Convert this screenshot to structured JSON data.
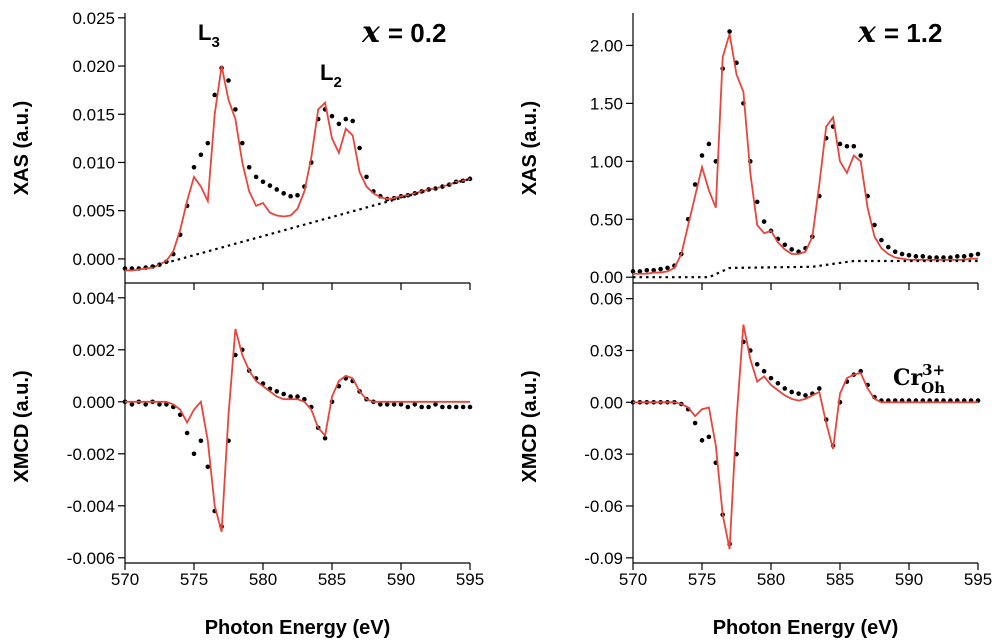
{
  "chart_data": [
    {
      "type": "line",
      "ylabel": "XAS (a.u.)",
      "xlim": [
        570,
        595
      ],
      "xticks": [
        570,
        575,
        580,
        585,
        590,
        595
      ],
      "ylim": [
        -0.0025,
        0.0255
      ],
      "yticks": [
        {
          "value": 0,
          "label": "0.000"
        },
        {
          "value": 0.005,
          "label": "0.005"
        },
        {
          "value": 0.01,
          "label": "0.010"
        },
        {
          "value": 0.015,
          "label": "0.015"
        },
        {
          "value": 0.02,
          "label": "0.020"
        },
        {
          "value": 0.025,
          "label": "0.025"
        }
      ],
      "annotations": [
        {
          "text": "L",
          "sub": "3"
        },
        {
          "text": "L",
          "sub": "2"
        },
        {
          "var": "x",
          "text": "= 0.2"
        }
      ],
      "x": [
        570,
        570.5,
        571,
        571.5,
        572,
        572.5,
        573,
        573.5,
        574,
        574.5,
        575,
        575.5,
        576,
        576.5,
        577,
        577.5,
        578,
        578.5,
        579,
        579.5,
        580,
        580.5,
        581,
        581.5,
        582,
        582.5,
        583,
        583.5,
        584,
        584.5,
        585,
        585.5,
        586,
        586.5,
        587,
        587.5,
        588,
        588.5,
        589,
        589.5,
        590,
        590.5,
        591,
        591.5,
        592,
        592.5,
        593,
        593.5,
        594,
        594.5,
        595
      ],
      "series": [
        {
          "style": "dots",
          "color": "#000000",
          "values": [
            -0.001,
            -0.001,
            -0.001,
            -0.0009,
            -0.0008,
            -0.0006,
            -0.0003,
            0.0005,
            0.0025,
            0.0055,
            0.0095,
            0.0108,
            0.012,
            0.017,
            0.0198,
            0.0185,
            0.0155,
            0.012,
            0.0095,
            0.0085,
            0.008,
            0.0076,
            0.0072,
            0.0068,
            0.0065,
            0.0066,
            0.0075,
            0.01,
            0.0145,
            0.0155,
            0.0148,
            0.014,
            0.0145,
            0.0143,
            0.0115,
            0.0085,
            0.007,
            0.0065,
            0.0062,
            0.0063,
            0.0065,
            0.0066,
            0.0068,
            0.007,
            0.0072,
            0.0073,
            0.0075,
            0.0077,
            0.008,
            0.0081,
            0.0083
          ]
        },
        {
          "style": "line",
          "color": "#e8453c",
          "values": [
            -0.0012,
            -0.0012,
            -0.0011,
            -0.001,
            -0.0009,
            -0.0006,
            -0.0002,
            0.0008,
            0.003,
            0.006,
            0.0085,
            0.0075,
            0.006,
            0.015,
            0.02,
            0.0165,
            0.0145,
            0.01,
            0.007,
            0.0055,
            0.0058,
            0.0048,
            0.0045,
            0.0044,
            0.0045,
            0.0052,
            0.007,
            0.0105,
            0.0155,
            0.0162,
            0.0125,
            0.011,
            0.0135,
            0.0128,
            0.009,
            0.0075,
            0.0068,
            0.0064,
            0.0062,
            0.0063,
            0.0065,
            0.0066,
            0.0068,
            0.007,
            0.0072,
            0.0073,
            0.0075,
            0.0077,
            0.008,
            0.0081,
            0.0083
          ]
        },
        {
          "style": "dotted",
          "color": "#000000",
          "x": [
            572,
            595
          ],
          "values": [
            -0.0008,
            0.0083
          ]
        }
      ]
    },
    {
      "type": "line",
      "ylabel": "XMCD (a.u.)",
      "xlabel": "Photon Energy (eV)",
      "xlim": [
        570,
        595
      ],
      "xticks": [
        570,
        575,
        580,
        585,
        590,
        595
      ],
      "ylim": [
        -0.0062,
        0.0043
      ],
      "yticks": [
        -0.006,
        -0.004,
        -0.002,
        {
          "value": 0,
          "label": "0.000"
        },
        0.002,
        0.004
      ],
      "x": [
        570,
        570.5,
        571,
        571.5,
        572,
        572.5,
        573,
        573.5,
        574,
        574.5,
        575,
        575.5,
        576,
        576.5,
        577,
        577.5,
        578,
        578.5,
        579,
        579.5,
        580,
        580.5,
        581,
        581.5,
        582,
        582.5,
        583,
        583.5,
        584,
        584.5,
        585,
        585.5,
        586,
        586.5,
        587,
        587.5,
        588,
        588.5,
        589,
        589.5,
        590,
        590.5,
        591,
        591.5,
        592,
        592.5,
        593,
        593.5,
        594,
        594.5,
        595
      ],
      "series": [
        {
          "style": "dots",
          "color": "#000000",
          "values": [
            0,
            -0.0001,
            0,
            -0.0001,
            0,
            -0.0001,
            -0.0001,
            -0.0002,
            -0.0005,
            -0.0012,
            -0.002,
            -0.0015,
            -0.0025,
            -0.0042,
            -0.0048,
            -0.0015,
            0.0018,
            0.002,
            0.0012,
            0.0009,
            0.0007,
            0.0005,
            0.0004,
            0.0003,
            0.0002,
            0.0002,
            0.0001,
            -0.0002,
            -0.001,
            -0.0014,
            0,
            0.0006,
            0.0009,
            0.0008,
            0.0004,
            0.0001,
            0,
            -0.0001,
            -0.0001,
            -0.0001,
            -0.0001,
            -0.0002,
            -0.0001,
            -0.0002,
            -0.0002,
            -0.0001,
            -0.0002,
            -0.0002,
            -0.0002,
            -0.0002,
            -0.0002
          ]
        },
        {
          "style": "line",
          "color": "#e8453c",
          "values": [
            0,
            0,
            0,
            0,
            0,
            0,
            0,
            -0.0001,
            -0.0003,
            -0.0008,
            -0.0003,
            0,
            -0.0015,
            -0.004,
            -0.005,
            -0.0005,
            0.0028,
            0.0018,
            0.0012,
            0.0008,
            0.0006,
            0.0004,
            0.0002,
            0.0001,
            0.0001,
            0.0001,
            0,
            -0.0003,
            -0.001,
            -0.0013,
            0.0002,
            0.0008,
            0.001,
            0.0009,
            0.0004,
            0.0001,
            0,
            0,
            0,
            0,
            0,
            0,
            0,
            0,
            0,
            0,
            0,
            0,
            0,
            0,
            0
          ]
        }
      ]
    },
    {
      "type": "line",
      "ylabel": "XAS (a.u.)",
      "xlim": [
        570,
        595
      ],
      "xticks": [
        570,
        575,
        580,
        585,
        590,
        595
      ],
      "ylim": [
        -0.05,
        2.28
      ],
      "yticks": [
        {
          "value": 0,
          "label": "0.00"
        },
        {
          "value": 0.5,
          "label": "0.50"
        },
        {
          "value": 1,
          "label": "1.00"
        },
        {
          "value": 1.5,
          "label": "1.50"
        },
        {
          "value": 2,
          "label": "2.00"
        }
      ],
      "annotations": [
        {
          "var": "x",
          "text": "= 1.2"
        }
      ],
      "x": [
        570,
        570.5,
        571,
        571.5,
        572,
        572.5,
        573,
        573.5,
        574,
        574.5,
        575,
        575.5,
        576,
        576.5,
        577,
        577.5,
        578,
        578.5,
        579,
        579.5,
        580,
        580.5,
        581,
        581.5,
        582,
        582.5,
        583,
        583.5,
        584,
        584.5,
        585,
        585.5,
        586,
        586.5,
        587,
        587.5,
        588,
        588.5,
        589,
        589.5,
        590,
        590.5,
        591,
        591.5,
        592,
        592.5,
        593,
        593.5,
        594,
        594.5,
        595
      ],
      "series": [
        {
          "style": "dots",
          "color": "#000000",
          "values": [
            0.05,
            0.05,
            0.06,
            0.06,
            0.07,
            0.08,
            0.1,
            0.2,
            0.5,
            0.8,
            1.05,
            1.15,
            1,
            1.8,
            2.12,
            1.85,
            1.5,
            1,
            0.65,
            0.48,
            0.4,
            0.33,
            0.28,
            0.24,
            0.22,
            0.25,
            0.35,
            0.7,
            1.2,
            1.3,
            1.15,
            1.13,
            1.13,
            1.05,
            0.7,
            0.45,
            0.32,
            0.26,
            0.22,
            0.2,
            0.19,
            0.18,
            0.18,
            0.17,
            0.17,
            0.17,
            0.17,
            0.18,
            0.18,
            0.19,
            0.2
          ]
        },
        {
          "style": "line",
          "color": "#e8453c",
          "values": [
            0.03,
            0.03,
            0.03,
            0.04,
            0.04,
            0.05,
            0.08,
            0.2,
            0.45,
            0.7,
            0.95,
            0.75,
            0.6,
            1.9,
            2.1,
            1.75,
            1.6,
            0.9,
            0.45,
            0.38,
            0.4,
            0.3,
            0.24,
            0.2,
            0.2,
            0.22,
            0.35,
            0.8,
            1.3,
            1.38,
            1,
            0.9,
            1.05,
            1,
            0.6,
            0.35,
            0.25,
            0.2,
            0.17,
            0.16,
            0.15,
            0.15,
            0.15,
            0.15,
            0.15,
            0.15,
            0.15,
            0.15,
            0.15,
            0.16,
            0.16
          ]
        },
        {
          "style": "dotted",
          "color": "#000000",
          "x": [
            570,
            575.5,
            577,
            583,
            586,
            595
          ],
          "values": [
            0,
            0,
            0.08,
            0.09,
            0.14,
            0.14
          ]
        }
      ]
    },
    {
      "type": "line",
      "ylabel": "XMCD (a.u.)",
      "xlabel": "Photon Energy (eV)",
      "xlim": [
        570,
        595
      ],
      "xticks": [
        570,
        575,
        580,
        585,
        590,
        595
      ],
      "ylim": [
        -0.093,
        0.065
      ],
      "yticks": [
        -0.09,
        -0.06,
        -0.03,
        {
          "value": 0,
          "label": "0.00"
        },
        0.03,
        0.06
      ],
      "annotations": [
        {
          "text": "Cr",
          "sup": "3+",
          "sub": "Oh",
          "color": "#e8453c"
        }
      ],
      "x": [
        570,
        570.5,
        571,
        571.5,
        572,
        572.5,
        573,
        573.5,
        574,
        574.5,
        575,
        575.5,
        576,
        576.5,
        577,
        577.5,
        578,
        578.5,
        579,
        579.5,
        580,
        580.5,
        581,
        581.5,
        582,
        582.5,
        583,
        583.5,
        584,
        584.5,
        585,
        585.5,
        586,
        586.5,
        587,
        587.5,
        588,
        588.5,
        589,
        589.5,
        590,
        590.5,
        591,
        591.5,
        592,
        592.5,
        593,
        593.5,
        594,
        594.5,
        595
      ],
      "series": [
        {
          "style": "dots",
          "color": "#000000",
          "values": [
            0,
            0,
            0,
            0,
            0,
            0,
            0,
            -0.001,
            -0.004,
            -0.012,
            -0.022,
            -0.02,
            -0.035,
            -0.065,
            -0.082,
            -0.03,
            0.035,
            0.03,
            0.022,
            0.018,
            0.014,
            0.011,
            0.008,
            0.006,
            0.005,
            0.004,
            0.005,
            0.008,
            -0.01,
            -0.025,
            0,
            0.012,
            0.016,
            0.018,
            0.01,
            0.003,
            0.001,
            0.001,
            0.001,
            0.001,
            0.001,
            0.001,
            0.001,
            0.001,
            0.001,
            0.001,
            0.001,
            0.001,
            0.001,
            0.001,
            0.001
          ]
        },
        {
          "style": "line",
          "color": "#e8453c",
          "values": [
            0,
            0,
            0,
            0,
            0,
            0,
            0,
            -0.001,
            -0.003,
            -0.008,
            -0.004,
            -0.003,
            -0.025,
            -0.065,
            -0.085,
            -0.01,
            0.045,
            0.025,
            0.012,
            0.015,
            0.01,
            0.007,
            0.004,
            0.002,
            0.001,
            0.002,
            0.004,
            0.006,
            -0.012,
            -0.027,
            0.005,
            0.014,
            0.016,
            0.017,
            0.008,
            0.002,
            0,
            0,
            0,
            0,
            0,
            0,
            0,
            0,
            0,
            0,
            0,
            0,
            0,
            0,
            0
          ]
        }
      ]
    }
  ]
}
